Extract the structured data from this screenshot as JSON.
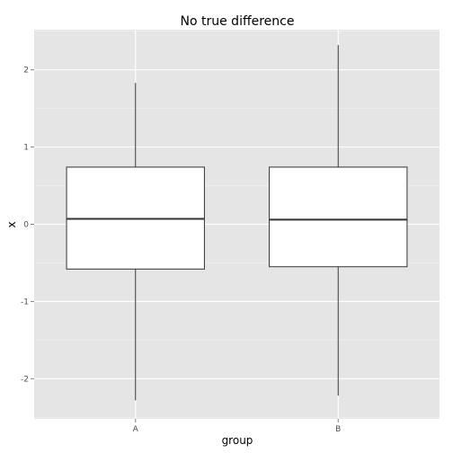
{
  "chart_data": {
    "type": "boxplot",
    "title": "No true difference",
    "xlabel": "group",
    "ylabel": "x",
    "categories": [
      "A",
      "B"
    ],
    "boxes": [
      {
        "category": "A",
        "whisker_low": -2.28,
        "q1": -0.58,
        "median": 0.07,
        "q3": 0.74,
        "whisker_high": 1.83
      },
      {
        "category": "B",
        "whisker_low": -2.22,
        "q1": -0.55,
        "median": 0.06,
        "q3": 0.74,
        "whisker_high": 2.32
      }
    ],
    "ylim": [
      -2.52,
      2.52
    ],
    "yticks": [
      -2,
      -1,
      0,
      1,
      2
    ],
    "grid": true,
    "colors": {
      "panel_background": "#e5e5e5",
      "grid_major": "#ffffff",
      "grid_minor": "#f2f2f2",
      "box_fill": "#ffffff",
      "box_stroke": "#333333",
      "tick_text": "#4d4d4d"
    }
  }
}
